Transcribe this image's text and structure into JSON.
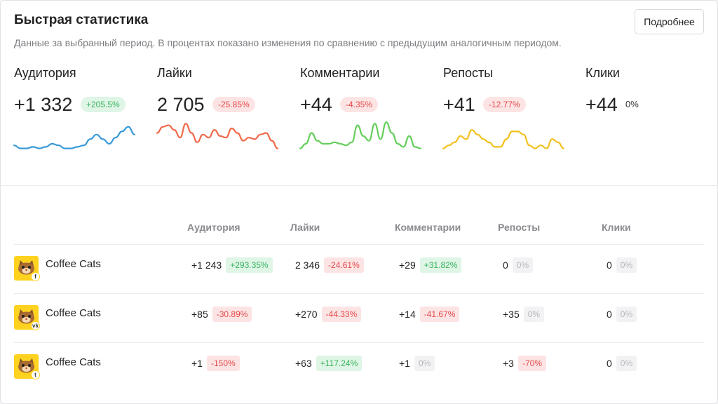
{
  "header": {
    "title": "Быстрая статистика",
    "subtitle": "Данные за выбранный период. В процентах показано изменения по сравнению с предыдущим аналогичным периодом.",
    "more_button": "Подробнее"
  },
  "metrics": [
    {
      "label": "Аудитория",
      "value": "+1 332",
      "change": "+205.5%",
      "trend": "pos",
      "color": "#3a9ad9",
      "spark": [
        2,
        1,
        1,
        1.5,
        1,
        1.5,
        2.5,
        2,
        1,
        1,
        1.5,
        2,
        4,
        5.5,
        4,
        2.5,
        4.5,
        6.5,
        8,
        5.5
      ]
    },
    {
      "label": "Лайки",
      "value": "2 705",
      "change": "-25.85%",
      "trend": "neg",
      "color": "#f06a4a",
      "spark": [
        6,
        8,
        8.5,
        7,
        4.5,
        9,
        6,
        3,
        5.5,
        4.5,
        7,
        5,
        4.5,
        7.5,
        6,
        3.5,
        4.5,
        4,
        5.5,
        6,
        3.5,
        1
      ]
    },
    {
      "label": "Комментарии",
      "value": "+44",
      "change": "-4.35%",
      "trend": "neg",
      "color": "#63cf5b",
      "spark": [
        1,
        2.5,
        6,
        3.5,
        2.5,
        2.5,
        3,
        2.5,
        2,
        3,
        8.5,
        5,
        3.5,
        9,
        4,
        9.5,
        6,
        2.5,
        1.5,
        5,
        1.5,
        1
      ]
    },
    {
      "label": "Репосты",
      "value": "+41",
      "change": "-12.77%",
      "trend": "neg",
      "color": "#f3c020",
      "spark": [
        1,
        2,
        3,
        5,
        4,
        7,
        5.5,
        4,
        3,
        1.5,
        1.5,
        4,
        6.5,
        6.5,
        5.5,
        2,
        1,
        2,
        1,
        4,
        3,
        1
      ]
    },
    {
      "label": "Клики",
      "value": "+44",
      "change": "0%",
      "trend": "neu",
      "color": "#999999",
      "spark": []
    }
  ],
  "table": {
    "columns": [
      "Аудитория",
      "Лайки",
      "Комментарии",
      "Репосты",
      "Клики"
    ],
    "rows": [
      {
        "name": "Coffee Cats",
        "network": "f",
        "network_icon": "facebook-icon",
        "cells": [
          {
            "value": "+1 243",
            "change": "+293.35%",
            "trend": "pos"
          },
          {
            "value": "2 346",
            "change": "-24.61%",
            "trend": "neg"
          },
          {
            "value": "+29",
            "change": "+31.82%",
            "trend": "pos"
          },
          {
            "value": "0",
            "change": "0%",
            "trend": "zero"
          },
          {
            "value": "0",
            "change": "0%",
            "trend": "zero"
          }
        ]
      },
      {
        "name": "Coffee Cats",
        "network": "vk",
        "network_icon": "vk-icon",
        "cells": [
          {
            "value": "+85",
            "change": "-30.89%",
            "trend": "neg"
          },
          {
            "value": "+270",
            "change": "-44.33%",
            "trend": "neg"
          },
          {
            "value": "+14",
            "change": "-41.67%",
            "trend": "neg"
          },
          {
            "value": "+35",
            "change": "0%",
            "trend": "zero"
          },
          {
            "value": "0",
            "change": "0%",
            "trend": "zero"
          }
        ]
      },
      {
        "name": "Coffee Cats",
        "network": "t",
        "network_icon": "twitter-icon",
        "cells": [
          {
            "value": "+1",
            "change": "-150%",
            "trend": "neg"
          },
          {
            "value": "+63",
            "change": "+117.24%",
            "trend": "pos"
          },
          {
            "value": "+1",
            "change": "0%",
            "trend": "zero"
          },
          {
            "value": "+3",
            "change": "-70%",
            "trend": "neg"
          },
          {
            "value": "0",
            "change": "0%",
            "trend": "zero"
          }
        ]
      }
    ]
  }
}
